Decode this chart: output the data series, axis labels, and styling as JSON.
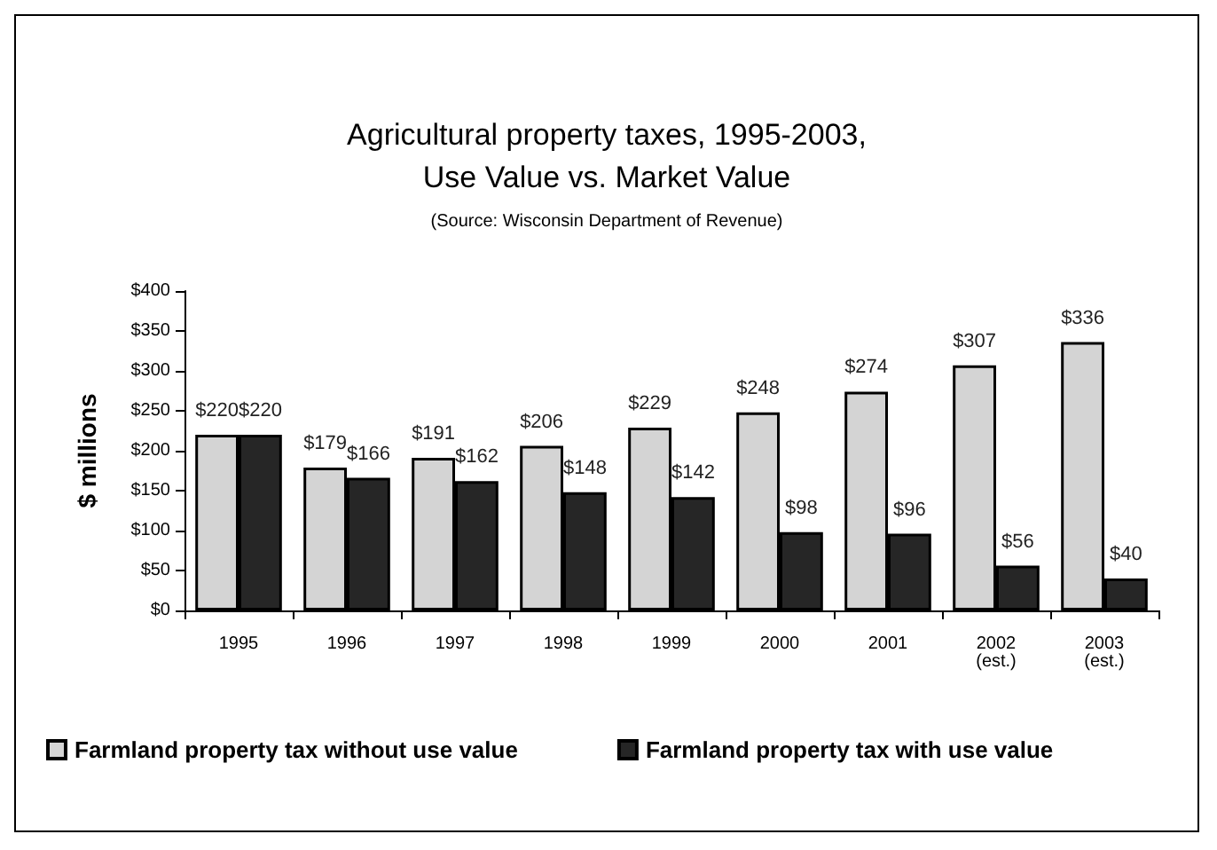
{
  "chart_data": {
    "type": "bar",
    "title": "Agricultural property taxes, 1995-2003,\nUse Value vs. Market Value",
    "subtitle": "(Source: Wisconsin Department of Revenue)",
    "ylabel": "$ millions",
    "categories": [
      "1995",
      "1996",
      "1997",
      "1998",
      "1999",
      "2000",
      "2001",
      "2002\n(est.)",
      "2003\n(est.)"
    ],
    "series": [
      {
        "name": "Farmland property tax without use value",
        "color": "#d4d4d4",
        "values": [
          220,
          179,
          191,
          206,
          229,
          248,
          274,
          307,
          336
        ],
        "value_labels": [
          "$220",
          "$179",
          "$191",
          "$206",
          "$229",
          "$248",
          "$274",
          "$307",
          "$336"
        ]
      },
      {
        "name": "Farmland property tax with use value",
        "color": "#262626",
        "values": [
          220,
          166,
          162,
          148,
          142,
          98,
          96,
          56,
          40
        ],
        "value_labels": [
          "$220",
          "$166",
          "$162",
          "$148",
          "$142",
          "$98",
          "$96",
          "$56",
          "$40"
        ]
      }
    ],
    "ylim": [
      0,
      400
    ],
    "yticks": [
      {
        "value": 0,
        "label": "$0"
      },
      {
        "value": 50,
        "label": "$50"
      },
      {
        "value": 100,
        "label": "$100"
      },
      {
        "value": 150,
        "label": "$150"
      },
      {
        "value": 200,
        "label": "$200"
      },
      {
        "value": 250,
        "label": "$250"
      },
      {
        "value": 300,
        "label": "$300"
      },
      {
        "value": 350,
        "label": "$350"
      },
      {
        "value": 400,
        "label": "$400"
      }
    ],
    "grid": false,
    "legend": "bottom"
  }
}
